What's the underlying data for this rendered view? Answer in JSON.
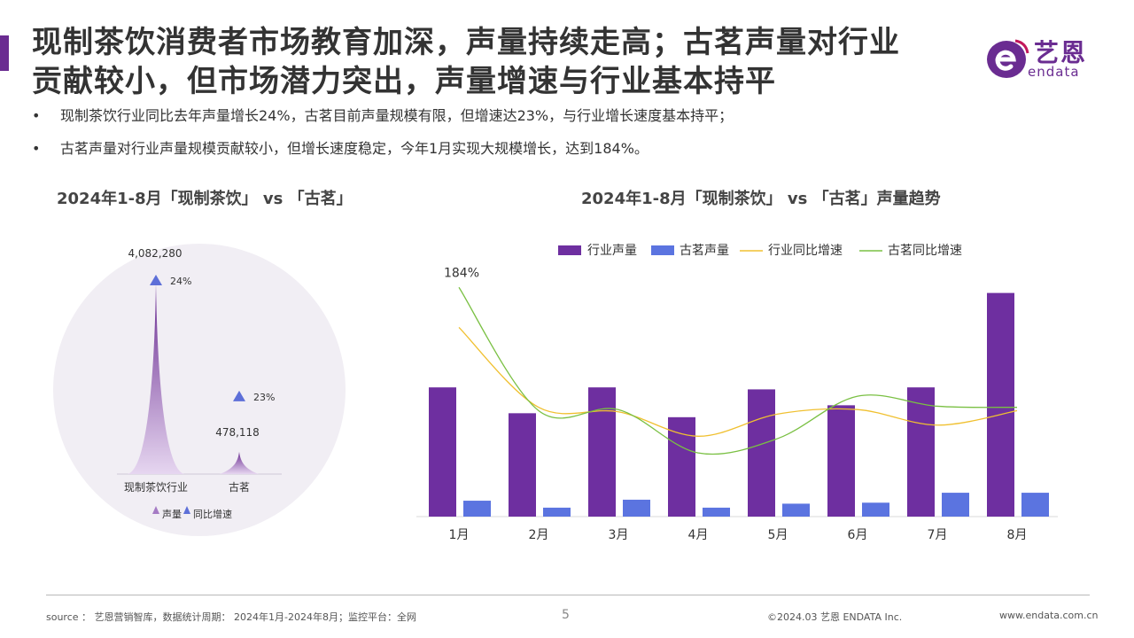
{
  "title": {
    "line1": "现制茶饮消费者市场教育加深，声量持续走高；古茗声量对行业",
    "line2": "贡献较小，但市场潜力突出，声量增速与行业基本持平"
  },
  "logo": {
    "cn": "艺恩",
    "en": "endata"
  },
  "bullets": [
    "现制茶饮行业同比去年声量增长24%，古茗目前声量规模有限，但增速达23%，与行业增长速度基本持平；",
    "古茗声量对行业声量规模贡献较小，但增长速度稳定，今年1月实现大规模增长，达到184%。"
  ],
  "bullet_symbol": "•",
  "colors": {
    "brand_purple": "#6a2c91",
    "industry_bar": "#6e2fa0",
    "gumin_bar": "#5b74e0",
    "industry_line": "#f0c030",
    "gumin_line": "#7ac043",
    "triangle": "#5d6fd8"
  },
  "chart_data": [
    {
      "type": "area",
      "title": "2024年1-8月「现制茶饮」 vs 「古茗」",
      "categories": [
        "现制茶饮行业",
        "古茗"
      ],
      "series": [
        {
          "name": "声量",
          "values": [
            4082280,
            478118
          ],
          "value_labels": [
            "4,082,280",
            "478,118"
          ]
        },
        {
          "name": "同比增速",
          "values": [
            24,
            23
          ],
          "unit": "%",
          "value_labels": [
            "24%",
            "23%"
          ]
        }
      ],
      "legend": [
        "声量",
        "同比增速"
      ],
      "legend_position": "bottom"
    },
    {
      "type": "bar",
      "title": "2024年1-8月「现制茶饮」 vs 「古茗」声量趋势",
      "categories": [
        "1月",
        "2月",
        "3月",
        "4月",
        "5月",
        "6月",
        "7月",
        "8月"
      ],
      "series": [
        {
          "name": "行业声量",
          "kind": "bar",
          "values": [
            130,
            104,
            130,
            100,
            128,
            112,
            130,
            225
          ]
        },
        {
          "name": "古茗声量",
          "kind": "bar",
          "values": [
            16,
            9,
            17,
            9,
            13,
            14,
            24,
            24
          ]
        },
        {
          "name": "行业同比增速",
          "kind": "line",
          "values": [
            148,
            76,
            72,
            50,
            70,
            74,
            60,
            73
          ]
        },
        {
          "name": "古茗同比增速",
          "kind": "line",
          "values": [
            184,
            73,
            74,
            35,
            48,
            86,
            77,
            76
          ]
        }
      ],
      "annotations": [
        {
          "category": "1月",
          "text": "184%"
        }
      ],
      "legend_position": "top",
      "grid": false,
      "note": ""
    }
  ],
  "footer": {
    "source": "source ： 艺恩营销智库，数据统计周期：  2024年1月-2024年8月；监控平台：全网",
    "page": "5",
    "copyright": "©2024.03  艺恩 ENDATA Inc.",
    "website": "www.endata.com.cn"
  }
}
